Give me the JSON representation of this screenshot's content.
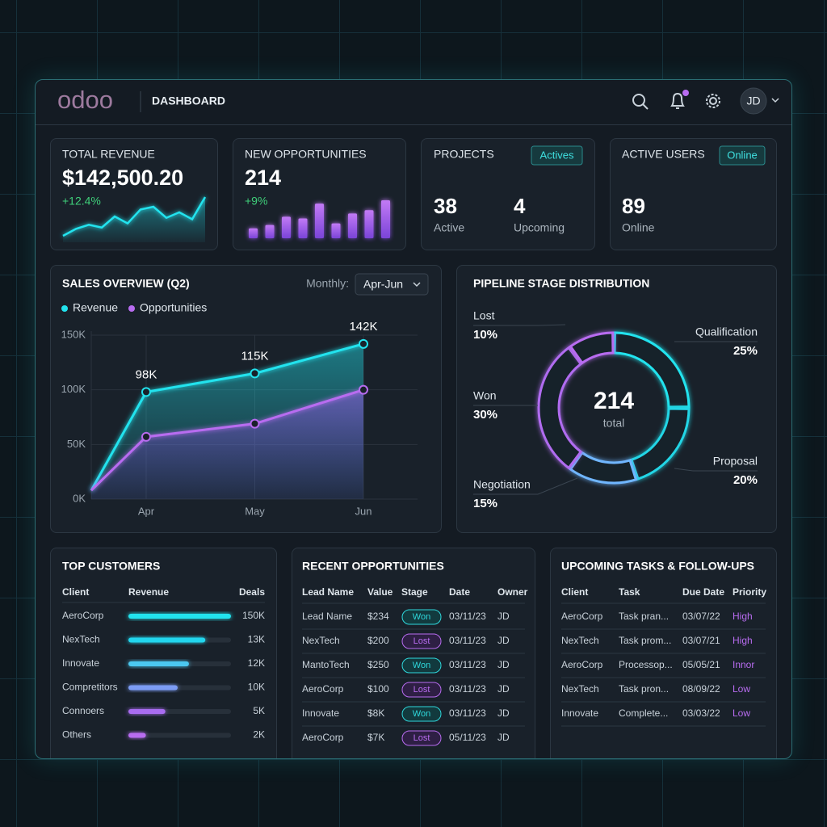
{
  "header": {
    "logo": "odoo",
    "title": "DASHBOARD",
    "user": "JD"
  },
  "kpis": {
    "total_revenue": {
      "label": "TOTAL REVENUE",
      "value": "$142,500.20",
      "change": "+12.4%",
      "trend": [
        3,
        8,
        11,
        9,
        17,
        12,
        22,
        24,
        16,
        20,
        15,
        31
      ]
    },
    "new_opportunities": {
      "label": "NEW OPPORTUNITIES",
      "value": 214,
      "change": "+9%",
      "bars": [
        12,
        16,
        26,
        24,
        42,
        18,
        30,
        34,
        46
      ]
    },
    "projects": {
      "label": "PROJECTS",
      "badge": "Actives",
      "stats": [
        {
          "value": 38,
          "label": "Active"
        },
        {
          "value": 4,
          "label": "Upcoming"
        }
      ]
    },
    "active_users": {
      "label": "ACTIVE USERS",
      "badge": "Online",
      "stats": [
        {
          "value": 89,
          "label": "Online"
        }
      ]
    }
  },
  "chart_data": [
    {
      "type": "line",
      "title": "SALES OVERVIEW (Q2)",
      "filter_label": "Monthly:",
      "filter_value": "Apr-Jun",
      "categories": [
        null,
        "Apr",
        "May",
        "Jun"
      ],
      "series": [
        {
          "name": "Revenue",
          "color": "#22e3ee",
          "values": [
            8000,
            98000,
            115000,
            142000
          ],
          "value_labels": [
            null,
            "98K",
            "115K",
            "142K"
          ]
        },
        {
          "name": "Opportunities",
          "color": "#b86cf0",
          "values": [
            8000,
            57000,
            69000,
            100000
          ]
        }
      ],
      "ylim": [
        0,
        150000
      ],
      "yticks": [
        {
          "value": 0,
          "label": "0K"
        },
        {
          "value": 50000,
          "label": "50K"
        },
        {
          "value": 100000,
          "label": "100K"
        },
        {
          "value": 150000,
          "label": "150K"
        }
      ],
      "grid": true
    },
    {
      "type": "donut",
      "title": "PIPELINE STAGE DISTRIBUTION",
      "categories": [
        "Qualification",
        "Proposal",
        "Negotiation",
        "Won",
        "Lost"
      ],
      "values": [
        25,
        20,
        15,
        30,
        10
      ],
      "value_labels": [
        "25%",
        "20%",
        "15%",
        "30%",
        "10%"
      ],
      "colors": [
        "#22e3ee",
        "#22d6e6",
        "#6fb6ff",
        "#b06cf0",
        "#b86cf0"
      ],
      "center_value": 214,
      "center_label": "total"
    }
  ],
  "top_customers": {
    "title": "TOP CUSTOMERS",
    "columns": [
      "Client",
      "Revenue",
      "Deals"
    ],
    "rows": [
      {
        "client": "AeroCorp",
        "revenue_bar": 100,
        "deals": "150K",
        "color": "#22e3ee"
      },
      {
        "client": "NexTech",
        "revenue_bar": 75,
        "deals": "13K",
        "color": "#22d6ee"
      },
      {
        "client": "Innovate",
        "revenue_bar": 59,
        "deals": "12K",
        "color": "#4cc8f0"
      },
      {
        "client": "Compretitors",
        "revenue_bar": 48,
        "deals": "10K",
        "color": "#7b9cf4"
      },
      {
        "client": "Connoers",
        "revenue_bar": 36,
        "deals": "5K",
        "color": "#a86cf0"
      },
      {
        "client": "Others",
        "revenue_bar": 17,
        "deals": "2K",
        "color": "#b86cf0"
      }
    ]
  },
  "recent_opportunities": {
    "title": "RECENT OPPORTUNITIES",
    "columns": [
      "Lead Name",
      "Value",
      "Stage",
      "Date",
      "Owner"
    ],
    "rows": [
      [
        "Lead Name",
        "$234",
        "Won",
        "03/11/23",
        "JD"
      ],
      [
        "NexTech",
        "$200",
        "Lost",
        "03/11/23",
        "JD"
      ],
      [
        "MantoTech",
        "$250",
        "Won",
        "03/11/23",
        "JD"
      ],
      [
        "AeroCorp",
        "$100",
        "Lost",
        "03/11/23",
        "JD"
      ],
      [
        "Innovate",
        "$8K",
        "Won",
        "03/11/23",
        "JD"
      ],
      [
        "AeroCorp",
        "$7K",
        "Lost",
        "05/11/23",
        "JD"
      ]
    ]
  },
  "upcoming_tasks": {
    "title": "UPCOMING TASKS & FOLLOW-UPS",
    "columns": [
      "Client",
      "Task",
      "Due Date",
      "Priority"
    ],
    "rows": [
      [
        "AeroCorp",
        "Task pran...",
        "03/07/22",
        "High"
      ],
      [
        "NexTech",
        "Task prom...",
        "03/07/21",
        "High"
      ],
      [
        "AeroCorp",
        "Processop...",
        "05/05/21",
        "Innor"
      ],
      [
        "NexTech",
        "Task pron...",
        "08/09/22",
        "Low"
      ],
      [
        "Innovate",
        "Complete...",
        "03/03/22",
        "Low"
      ]
    ]
  }
}
